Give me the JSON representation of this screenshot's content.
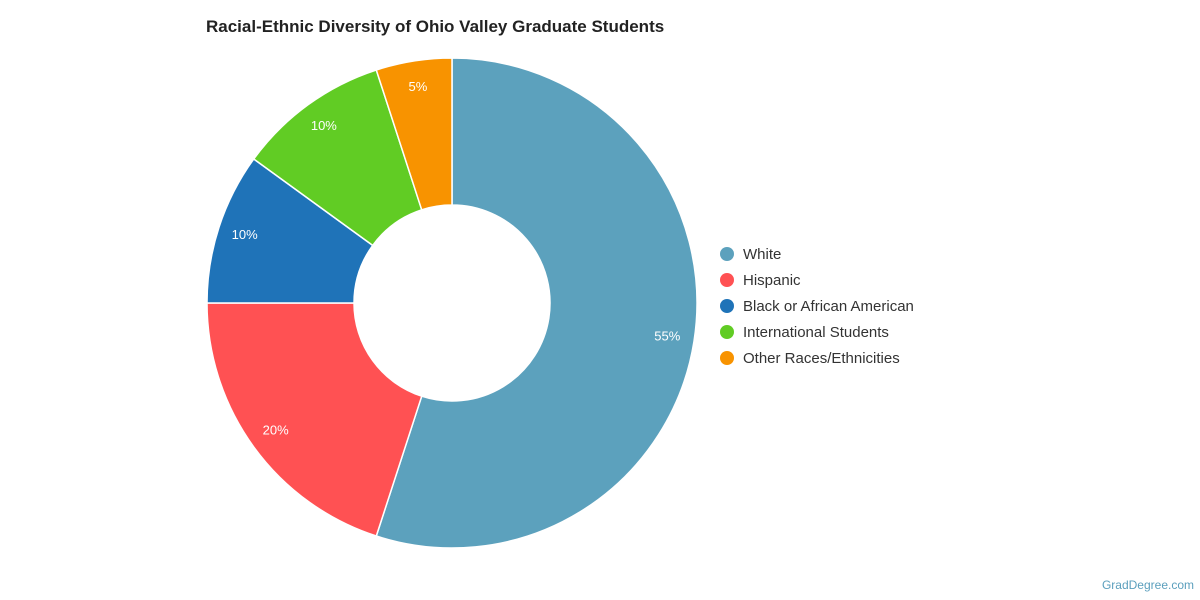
{
  "chart_data": {
    "type": "pie",
    "variant": "donut",
    "title": "Racial-Ethnic Diversity of Ohio Valley Graduate Students",
    "categories": [
      "White",
      "Hispanic",
      "Black or African American",
      "International Students",
      "Other Races/Ethnicities"
    ],
    "values": [
      55,
      20,
      10,
      10,
      5
    ],
    "labels": [
      "55%",
      "20%",
      "10%",
      "10%",
      "5%"
    ],
    "colors": [
      "#5ca1bd",
      "#ff5153",
      "#1f73b8",
      "#61cc24",
      "#f89300"
    ],
    "legend_position": "right"
  },
  "credit": "GradDegree.com"
}
